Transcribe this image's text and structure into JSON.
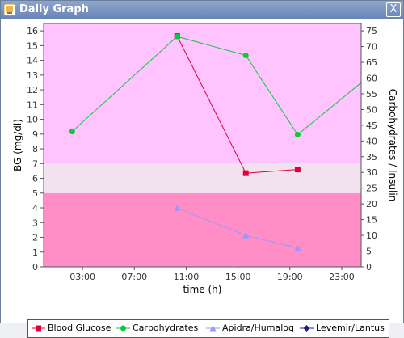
{
  "window": {
    "title": "Daily Graph",
    "close_symbol": "X",
    "icon": "app-icon"
  },
  "chart_data": {
    "type": "line",
    "xlabel": "time (h)",
    "ylabel_left": "BG (mg/dl)",
    "ylabel_right": "Carbohydrates / Insulin",
    "x_ticks": [
      "03:00",
      "07:00",
      "11:00",
      "15:00",
      "19:00",
      "23:00"
    ],
    "y_left_ticks": [
      "0",
      "1",
      "2",
      "3",
      "4",
      "5",
      "6",
      "7",
      "8",
      "9",
      "10",
      "11",
      "12",
      "13",
      "14",
      "15",
      "16"
    ],
    "y_right_ticks": [
      "0",
      "5",
      "10",
      "15",
      "20",
      "25",
      "30",
      "35",
      "40",
      "45",
      "50",
      "55",
      "60",
      "65",
      "70",
      "75"
    ],
    "xlim_hours": [
      0,
      24.5
    ],
    "ylim_left": [
      0,
      16.5
    ],
    "ylim_right": [
      0,
      77.34
    ],
    "bands": [
      {
        "name": "low",
        "from": 0,
        "to": 5,
        "color": "#ff8ec6"
      },
      {
        "name": "target",
        "from": 5,
        "to": 7,
        "color": "#f2e2f0"
      },
      {
        "name": "high",
        "from": 7,
        "to": 16.5,
        "color": "#ffc4ff"
      }
    ],
    "series": [
      {
        "name": "Blood Glucose",
        "axis": "left",
        "color": "#e0003c",
        "marker": "square",
        "x": [
          10.3,
          15.6,
          19.6
        ],
        "y": [
          15.65,
          6.35,
          6.6
        ]
      },
      {
        "name": "Carbohydrates",
        "axis": "right",
        "color": "#11c83c",
        "marker": "circle",
        "x": [
          2.2,
          10.3,
          15.6,
          19.6,
          24.5
        ],
        "y": [
          43,
          73.2,
          67.2,
          42,
          58.5
        ]
      },
      {
        "name": "Apidra/Humalog",
        "axis": "right",
        "color": "#9898ff",
        "marker": "triangle",
        "x": [
          10.3,
          15.6,
          19.6
        ],
        "y": [
          18.7,
          10,
          6
        ]
      },
      {
        "name": "Levemir/Lantus",
        "axis": "right",
        "color": "#1c1c8c",
        "marker": "diamond",
        "x": [],
        "y": []
      }
    ]
  }
}
